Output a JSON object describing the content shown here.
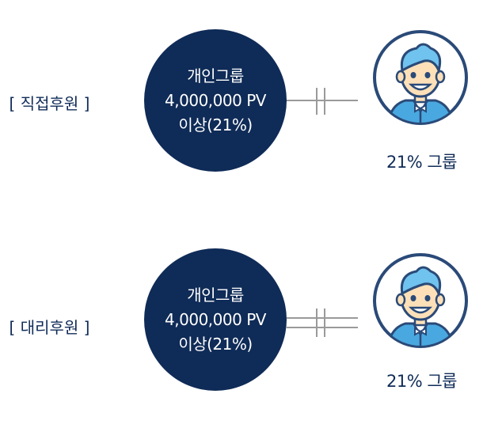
{
  "rows": [
    {
      "label": "[ 직접후원 ]",
      "circle": {
        "line1": "개인그룹",
        "line2": "4,000,000 PV",
        "line3": "이상(21%)"
      },
      "member_label": "21% 그룹",
      "connector": "single-line"
    },
    {
      "label": "[ 대리후원 ]",
      "circle": {
        "line1": "개인그룹",
        "line2": "4,000,000 PV",
        "line3": "이상(21%)"
      },
      "member_label": "21% 그룹",
      "connector": "double-line"
    }
  ],
  "colors": {
    "navy": "#0f2b57",
    "avatar_outline": "#2a4a78",
    "skin": "#fde0b8",
    "hair": "#6fc3ee",
    "shirt": "#4aa8e0",
    "connector": "#9a9a9a"
  },
  "icons": [
    "person-avatar-icon"
  ]
}
